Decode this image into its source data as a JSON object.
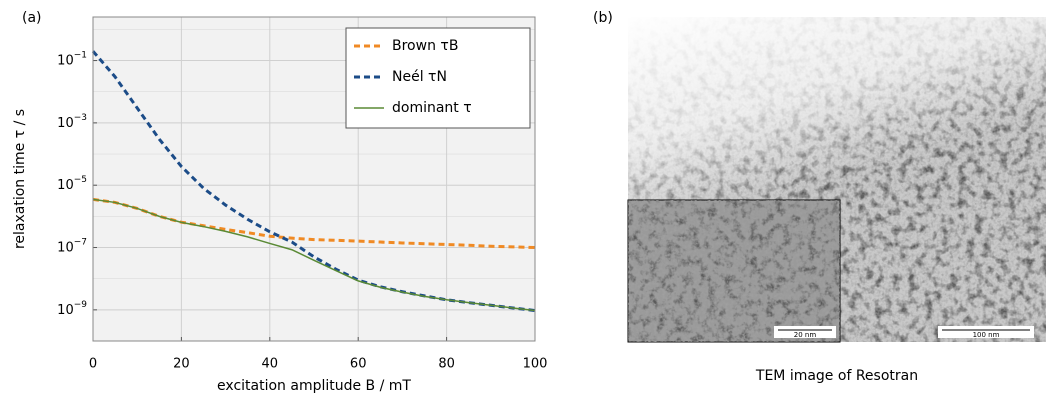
{
  "chart_data": {
    "type": "line",
    "panel_label": "(a)",
    "x_label": "excitation amplitude B / mT",
    "y_label": "relaxation time τ / s",
    "x": [
      0,
      5,
      10,
      15,
      20,
      25,
      30,
      35,
      40,
      45,
      50,
      55,
      60,
      65,
      70,
      75,
      80,
      85,
      90,
      95,
      100
    ],
    "series": [
      {
        "name": "Brown τB",
        "color": "#f08a24",
        "dashed": true,
        "values": [
          3.5e-06,
          2.8e-06,
          1.8e-06,
          1e-06,
          6.5e-07,
          5e-07,
          3.8e-07,
          3e-07,
          2.3e-07,
          2e-07,
          1.8e-07,
          1.7e-07,
          1.6e-07,
          1.5e-07,
          1.4e-07,
          1.32e-07,
          1.25e-07,
          1.18e-07,
          1.1e-07,
          1.05e-07,
          1e-07
        ]
      },
      {
        "name": "Neél τN",
        "color": "#1c4c88",
        "dashed": true,
        "values": [
          0.2,
          0.03,
          0.003,
          0.0003,
          4e-05,
          8e-06,
          2.3e-06,
          8e-07,
          3.2e-07,
          1.5e-07,
          5e-08,
          2e-08,
          9e-09,
          5.5e-09,
          3.8e-09,
          2.8e-09,
          2.1e-09,
          1.7e-09,
          1.4e-09,
          1.15e-09,
          9.5e-10
        ]
      },
      {
        "name": "dominant τ",
        "color": "#5a8a35",
        "dashed": false,
        "values": [
          3.5e-06,
          2.8e-06,
          1.8e-06,
          1e-06,
          6.4e-07,
          4.7e-07,
          3.3e-07,
          2.2e-07,
          1.35e-07,
          8.5e-08,
          3.9e-08,
          1.8e-08,
          8.5e-09,
          5.3e-09,
          3.7e-09,
          2.7e-09,
          2.1e-09,
          1.7e-09,
          1.4e-09,
          1.15e-09,
          9.5e-10
        ]
      }
    ],
    "xlim": [
      0,
      100
    ],
    "xticks": [
      0,
      20,
      40,
      60,
      80,
      100
    ],
    "ylim": [
      1e-10,
      2.5
    ],
    "ylog": true,
    "yticks": [
      {
        "value": 1e-09,
        "label": "10−9"
      },
      {
        "value": 1e-07,
        "label": "10−7"
      },
      {
        "value": 1e-05,
        "label": "10−5"
      },
      {
        "value": 0.001,
        "label": "10−3"
      },
      {
        "value": 0.1,
        "label": "10−1"
      }
    ],
    "grid": true,
    "legend": "upper right"
  },
  "panel_b": {
    "panel_label": "(b)",
    "caption": "TEM image of Resotran",
    "inset_scale": "20 nm",
    "main_scale": "100 nm"
  }
}
